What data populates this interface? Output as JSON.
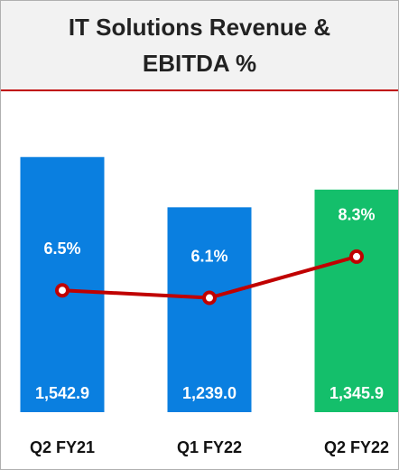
{
  "chart_data": {
    "type": "bar",
    "title": "IT Solutions Revenue & EBITDA %",
    "categories": [
      "Q2 FY21",
      "Q1 FY22",
      "Q2 FY22"
    ],
    "ylim": [
      0,
      1700
    ],
    "y2lim": [
      0,
      15
    ],
    "series": [
      {
        "type": "bar",
        "values": [
          1542.9,
          1239.0,
          1345.9
        ],
        "value_labels": [
          "1,542.9",
          "1,239.0",
          "1,345.9"
        ],
        "colors": [
          "#0a7fe0",
          "#0a7fe0",
          "#14bf6b"
        ]
      },
      {
        "type": "line",
        "axis": "y2",
        "values": [
          6.5,
          6.1,
          8.3
        ],
        "value_labels": [
          "6.5%",
          "6.1%",
          "8.3%"
        ],
        "color": "#c00000"
      }
    ]
  }
}
